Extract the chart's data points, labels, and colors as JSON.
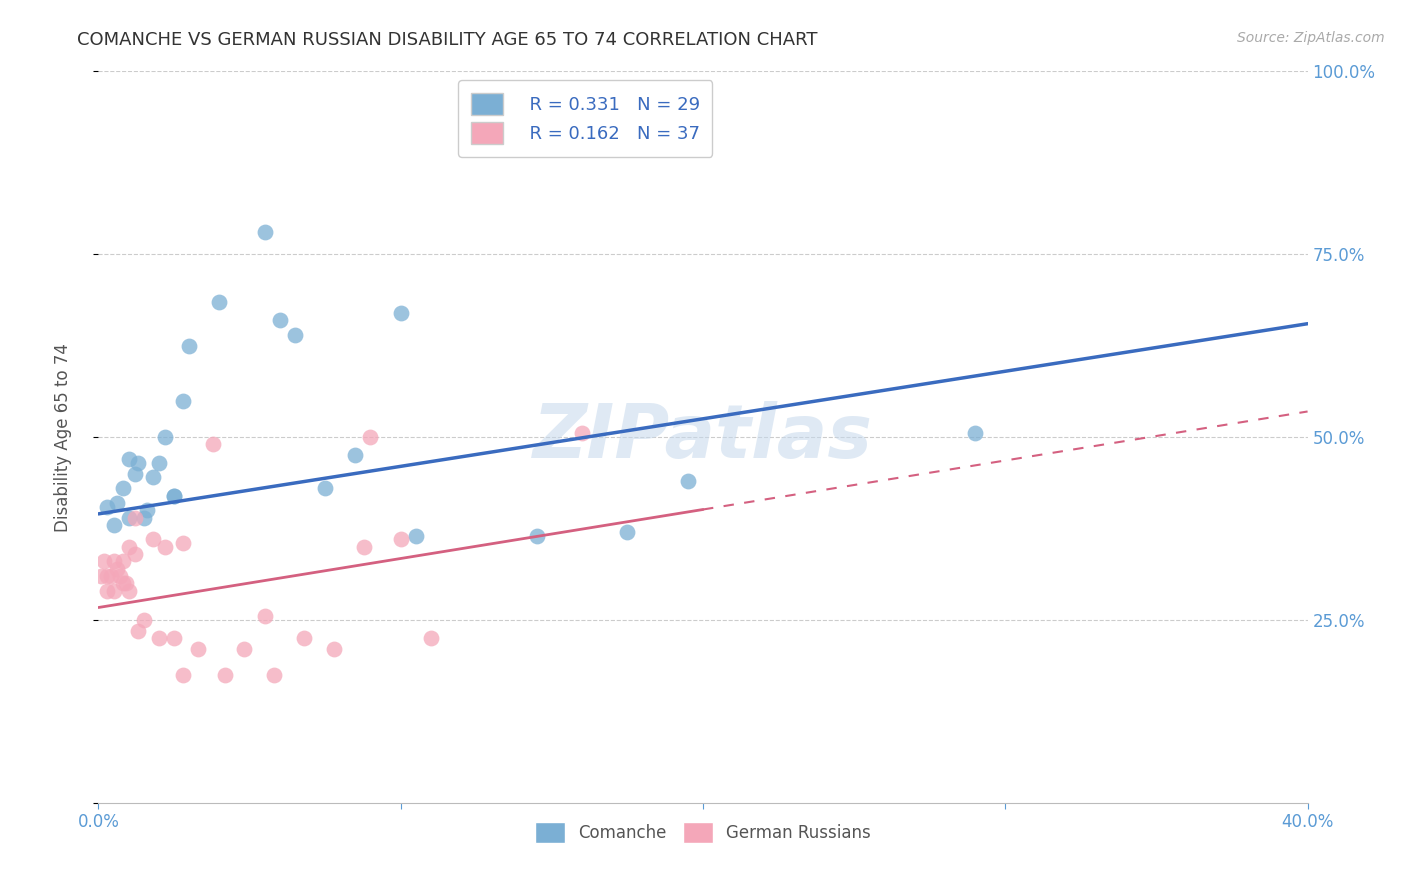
{
  "title": "COMANCHE VS GERMAN RUSSIAN DISABILITY AGE 65 TO 74 CORRELATION CHART",
  "source": "Source: ZipAtlas.com",
  "ylabel": "Disability Age 65 to 74",
  "watermark": "ZIPatlas",
  "xlim": [
    0.0,
    0.4
  ],
  "ylim": [
    0.0,
    1.0
  ],
  "comanche_R": "0.331",
  "comanche_N": "29",
  "german_russian_R": "0.162",
  "german_russian_N": "37",
  "comanche_color": "#7bafd4",
  "comanche_line_color": "#3a6bbf",
  "german_russian_color": "#f4a7b9",
  "german_russian_line_color": "#d46080",
  "comanche_points_x": [
    0.003,
    0.005,
    0.006,
    0.008,
    0.01,
    0.01,
    0.012,
    0.013,
    0.015,
    0.016,
    0.018,
    0.02,
    0.022,
    0.025,
    0.025,
    0.028,
    0.03,
    0.04,
    0.055,
    0.06,
    0.065,
    0.075,
    0.085,
    0.1,
    0.105,
    0.145,
    0.175,
    0.195,
    0.29
  ],
  "comanche_points_y": [
    0.405,
    0.38,
    0.41,
    0.43,
    0.47,
    0.39,
    0.45,
    0.465,
    0.39,
    0.4,
    0.445,
    0.465,
    0.5,
    0.42,
    0.42,
    0.55,
    0.625,
    0.685,
    0.78,
    0.66,
    0.64,
    0.43,
    0.475,
    0.67,
    0.365,
    0.365,
    0.37,
    0.44,
    0.505
  ],
  "german_russian_points_x": [
    0.001,
    0.002,
    0.003,
    0.003,
    0.004,
    0.005,
    0.005,
    0.006,
    0.007,
    0.008,
    0.008,
    0.009,
    0.01,
    0.01,
    0.012,
    0.012,
    0.013,
    0.015,
    0.018,
    0.02,
    0.022,
    0.025,
    0.028,
    0.028,
    0.033,
    0.038,
    0.042,
    0.048,
    0.055,
    0.058,
    0.068,
    0.078,
    0.088,
    0.09,
    0.1,
    0.11,
    0.16
  ],
  "german_russian_points_y": [
    0.31,
    0.33,
    0.29,
    0.31,
    0.31,
    0.29,
    0.33,
    0.32,
    0.31,
    0.3,
    0.33,
    0.3,
    0.35,
    0.29,
    0.39,
    0.34,
    0.235,
    0.25,
    0.36,
    0.225,
    0.35,
    0.225,
    0.175,
    0.355,
    0.21,
    0.49,
    0.175,
    0.21,
    0.255,
    0.175,
    0.225,
    0.21,
    0.35,
    0.5,
    0.36,
    0.225,
    0.505
  ],
  "comanche_line_x0": 0.0,
  "comanche_line_y0": 0.395,
  "comanche_line_x1": 0.4,
  "comanche_line_y1": 0.655,
  "german_russian_line_x0": 0.0,
  "german_russian_line_y0": 0.267,
  "german_russian_line_x1": 0.4,
  "german_russian_line_y1": 0.535,
  "background_color": "#ffffff",
  "grid_color": "#cccccc",
  "ytick_positions": [
    0.0,
    0.25,
    0.5,
    0.75,
    1.0
  ],
  "xtick_positions": [
    0.0,
    0.1,
    0.2,
    0.3,
    0.4
  ]
}
